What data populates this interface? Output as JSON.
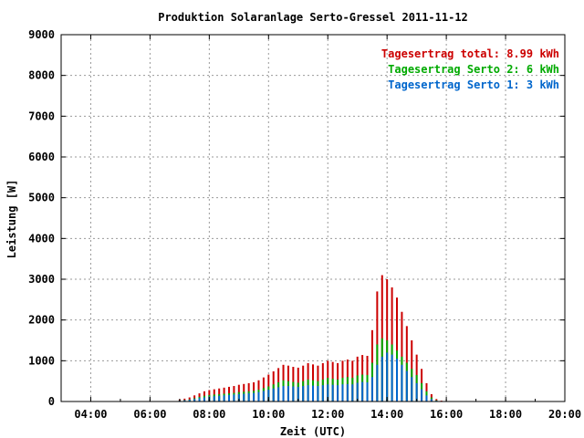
{
  "chart_data": {
    "type": "bar",
    "stacked": true,
    "title": "Produktion Solaranlage Serto-Gressel 2011-11-12",
    "xlabel": "Zeit (UTC)",
    "ylabel": "Leistung [W]",
    "ylim": [
      0,
      9000
    ],
    "xlim": [
      "03:00",
      "20:00"
    ],
    "grid": true,
    "legend_position": "top-right",
    "x_ticks": [
      "04:00",
      "06:00",
      "08:00",
      "10:00",
      "12:00",
      "14:00",
      "16:00",
      "18:00",
      "20:00"
    ],
    "y_ticks": [
      "0",
      "1000",
      "2000",
      "3000",
      "4000",
      "5000",
      "6000",
      "7000",
      "8000",
      "9000"
    ],
    "legend": [
      {
        "label": "Tagesertrag total: 8.99 kWh",
        "color": "#cc0000"
      },
      {
        "label": "Tagesertrag Serto 2: 6 kWh",
        "color": "#00aa00"
      },
      {
        "label": "Tagesertrag Serto 1: 3 kWh",
        "color": "#0066cc"
      }
    ],
    "x": [
      "07:00",
      "07:10",
      "07:20",
      "07:30",
      "07:40",
      "07:50",
      "08:00",
      "08:10",
      "08:20",
      "08:30",
      "08:40",
      "08:50",
      "09:00",
      "09:10",
      "09:20",
      "09:30",
      "09:40",
      "09:50",
      "10:00",
      "10:10",
      "10:20",
      "10:30",
      "10:40",
      "10:50",
      "11:00",
      "11:10",
      "11:20",
      "11:30",
      "11:40",
      "11:50",
      "12:00",
      "12:10",
      "12:20",
      "12:30",
      "12:40",
      "12:50",
      "13:00",
      "13:10",
      "13:20",
      "13:30",
      "13:40",
      "13:50",
      "14:00",
      "14:10",
      "14:20",
      "14:30",
      "14:40",
      "14:50",
      "15:00",
      "15:10",
      "15:20",
      "15:30",
      "15:40",
      "15:50"
    ],
    "series": [
      {
        "name": "Serto 1",
        "color": "#0066cc",
        "values": [
          20,
          30,
          40,
          60,
          80,
          100,
          120,
          130,
          140,
          150,
          160,
          170,
          180,
          190,
          200,
          210,
          230,
          260,
          290,
          320,
          350,
          380,
          380,
          370,
          360,
          380,
          400,
          390,
          380,
          400,
          420,
          410,
          400,
          420,
          430,
          420,
          460,
          480,
          470,
          600,
          900,
          1100,
          1200,
          1150,
          1050,
          900,
          750,
          600,
          450,
          300,
          150,
          60,
          20,
          5
        ]
      },
      {
        "name": "Serto 2",
        "color": "#00aa00",
        "values": [
          25,
          35,
          50,
          80,
          110,
          140,
          160,
          170,
          180,
          190,
          200,
          210,
          230,
          240,
          250,
          260,
          290,
          330,
          370,
          420,
          470,
          520,
          500,
          480,
          460,
          500,
          540,
          520,
          500,
          540,
          580,
          560,
          540,
          580,
          600,
          580,
          640,
          660,
          650,
          950,
          1400,
          1550,
          1500,
          1400,
          1250,
          1100,
          950,
          800,
          650,
          450,
          250,
          100,
          30,
          10
        ]
      },
      {
        "name": "total",
        "color": "#cc0000",
        "values": [
          50,
          70,
          100,
          150,
          200,
          250,
          280,
          300,
          320,
          340,
          360,
          380,
          410,
          430,
          450,
          470,
          520,
          590,
          660,
          740,
          820,
          900,
          880,
          850,
          830,
          880,
          940,
          910,
          880,
          940,
          1000,
          970,
          940,
          1000,
          1030,
          1000,
          1100,
          1140,
          1120,
          1750,
          2700,
          3100,
          3000,
          2800,
          2550,
          2200,
          1850,
          1500,
          1150,
          800,
          450,
          180,
          60,
          20
        ]
      }
    ]
  }
}
